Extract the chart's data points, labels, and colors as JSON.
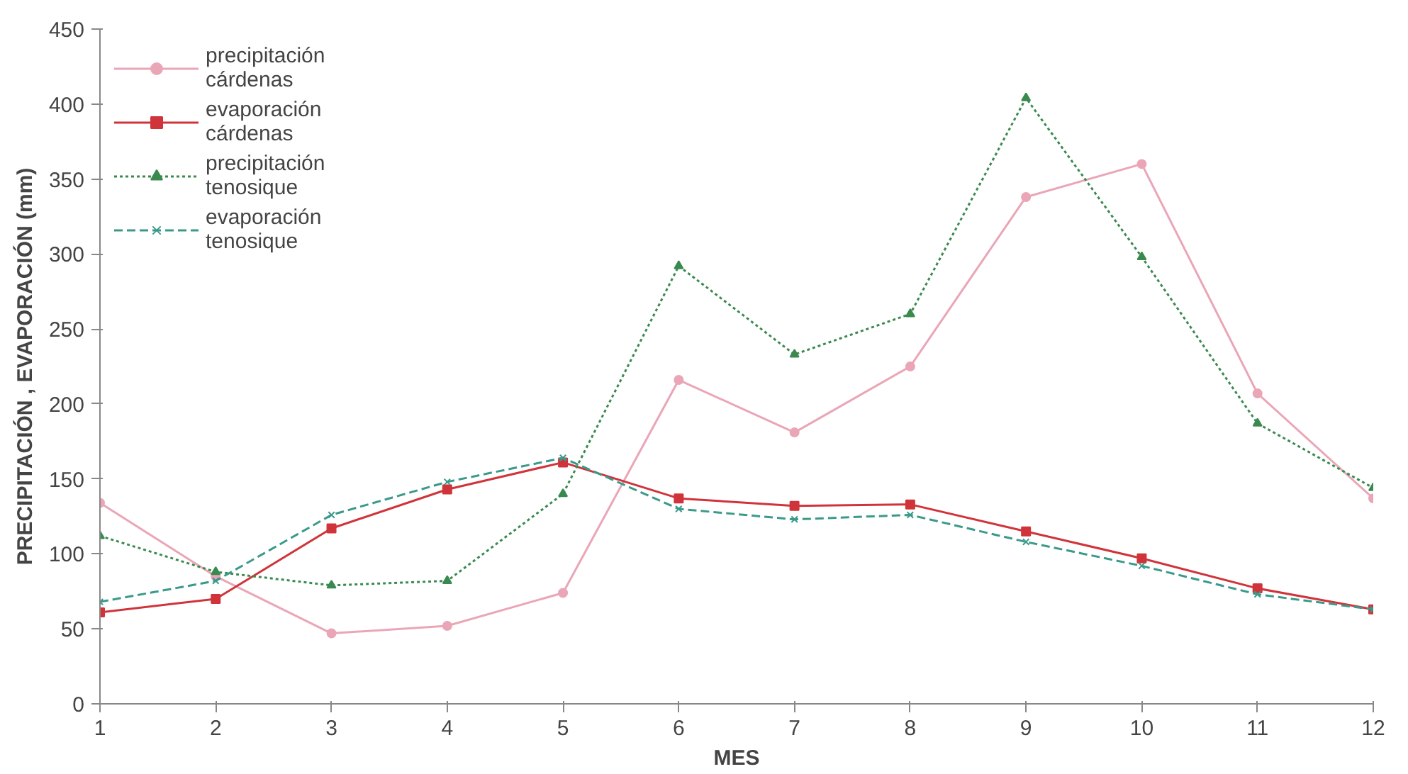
{
  "chart_data": {
    "type": "line",
    "xlabel": "MES",
    "ylabel": "PRECIPITACIÓN , EVAPORACIÓN (mm)",
    "x": [
      1,
      2,
      3,
      4,
      5,
      6,
      7,
      8,
      9,
      10,
      11,
      12
    ],
    "xlim": [
      1,
      12
    ],
    "xticks": [
      1,
      2,
      3,
      4,
      5,
      6,
      7,
      8,
      9,
      10,
      11,
      12
    ],
    "ylim": [
      0,
      450
    ],
    "yticks": [
      0,
      50,
      100,
      150,
      200,
      250,
      300,
      350,
      400,
      450
    ],
    "grid": false,
    "legend": "top left",
    "series": [
      {
        "name": "precipitación cárdenas",
        "color": "#eaa6b6",
        "marker": "circle",
        "line_style": "solid",
        "values": [
          134,
          85,
          47,
          52,
          74,
          216,
          181,
          225,
          338,
          360,
          207,
          137
        ]
      },
      {
        "name": "evaporación cárdenas",
        "color": "#d0343a",
        "marker": "square",
        "line_style": "solid",
        "values": [
          61,
          70,
          117,
          143,
          161,
          137,
          132,
          133,
          115,
          97,
          77,
          63
        ]
      },
      {
        "name": "precipitación tenosique",
        "color": "#3a8a50",
        "marker": "triangle",
        "line_style": "dotted",
        "values": [
          112,
          88,
          79,
          82,
          140,
          292,
          233,
          260,
          404,
          298,
          187,
          144
        ]
      },
      {
        "name": "evaporación tenosique",
        "color": "#3a9a8a",
        "marker": "cross",
        "line_style": "dashed",
        "values": [
          68,
          82,
          126,
          148,
          164,
          130,
          123,
          126,
          108,
          92,
          73,
          63
        ]
      }
    ]
  }
}
